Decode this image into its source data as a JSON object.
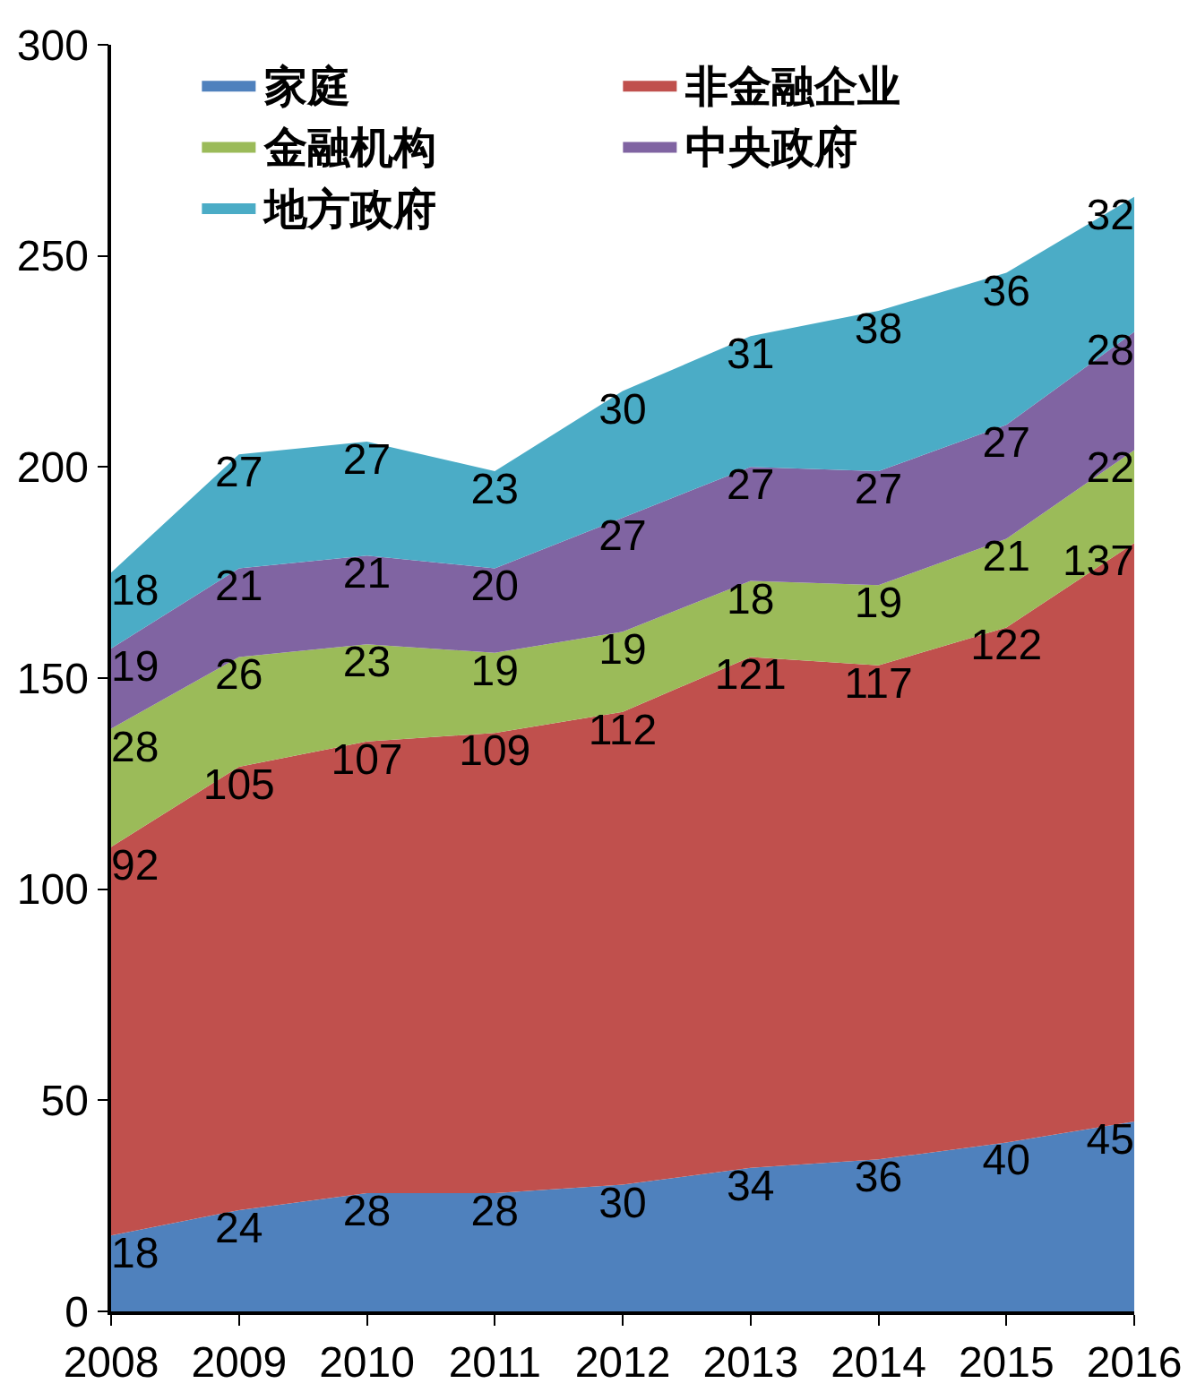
{
  "chart_data": {
    "type": "area",
    "stacked": true,
    "x": [
      2008,
      2009,
      2010,
      2011,
      2012,
      2013,
      2014,
      2015,
      2016
    ],
    "xlim": [
      2008,
      2016
    ],
    "xticks": [
      2008,
      2009,
      2010,
      2011,
      2012,
      2013,
      2014,
      2015,
      2016
    ],
    "ylim": [
      0,
      300
    ],
    "yticks": [
      0,
      50,
      100,
      150,
      200,
      250,
      300
    ],
    "grid": false,
    "legend": "top",
    "data_labels": true,
    "series": [
      {
        "name": "家庭",
        "color": "#4f81bd",
        "values": [
          18,
          24,
          28,
          28,
          30,
          34,
          36,
          40,
          45
        ]
      },
      {
        "name": "非金融企业",
        "color": "#c0504d",
        "values": [
          92,
          105,
          107,
          109,
          112,
          121,
          117,
          122,
          137
        ]
      },
      {
        "name": "金融机构",
        "color": "#9bbb59",
        "values": [
          28,
          26,
          23,
          19,
          19,
          18,
          19,
          21,
          22
        ]
      },
      {
        "name": "中央政府",
        "color": "#8064a2",
        "values": [
          19,
          21,
          21,
          20,
          27,
          27,
          27,
          27,
          28
        ]
      },
      {
        "name": "地方政府",
        "color": "#4bacc6",
        "values": [
          18,
          27,
          27,
          23,
          30,
          31,
          38,
          36,
          32
        ]
      }
    ]
  }
}
